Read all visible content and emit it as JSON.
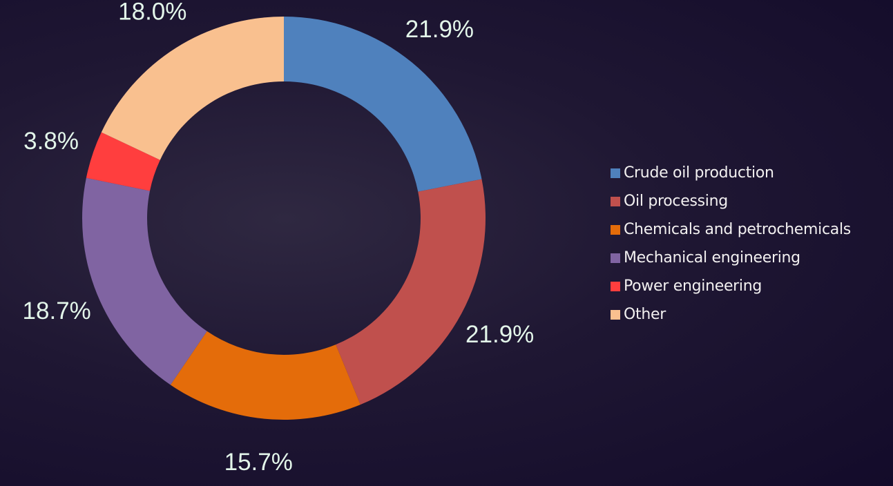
{
  "chart_data": {
    "type": "pie",
    "donut": true,
    "categories": [
      "Crude oil production",
      "Oil processing",
      "Chemicals and petrochemicals",
      "Mechanical engineering",
      "Power engineering",
      "Other"
    ],
    "values": [
      21.9,
      21.9,
      15.7,
      18.7,
      3.8,
      18.0
    ],
    "labels": [
      "21.9%",
      "21.9%",
      "15.7%",
      "18.7%",
      "3.8%",
      "18.0%"
    ],
    "colors": [
      "#4f81bd",
      "#c0504d",
      "#e46c0a",
      "#8064a2",
      "#ff3e3e",
      "#f9c08f"
    ],
    "legend_position": "right"
  }
}
